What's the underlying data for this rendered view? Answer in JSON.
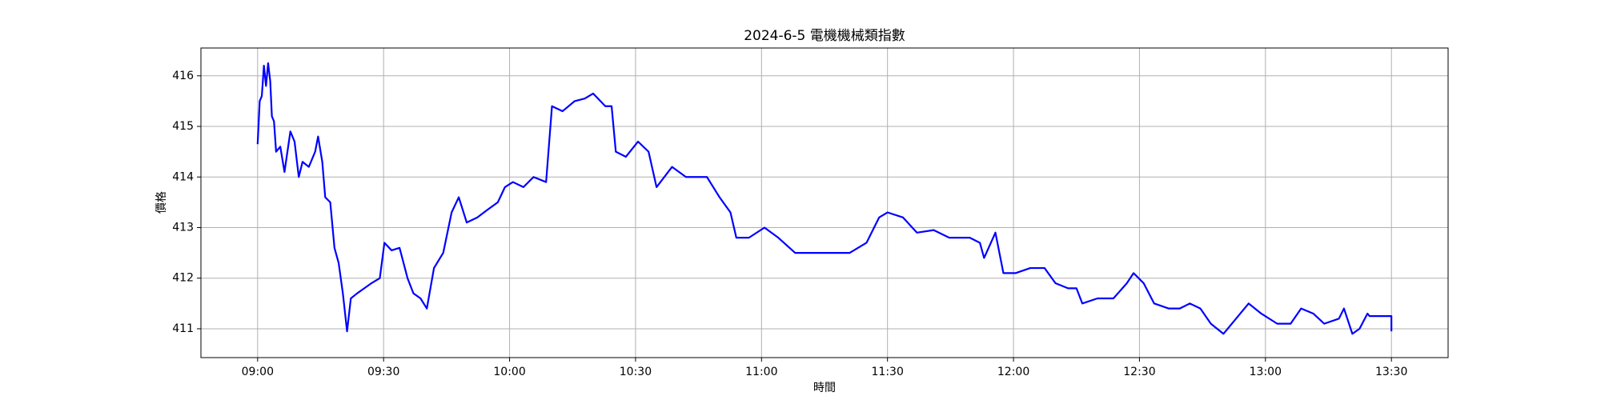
{
  "chart_data": {
    "type": "line",
    "title": "2024-6-5 電機機械類指數",
    "xlabel": "時間",
    "ylabel": "價格",
    "series": [
      {
        "color": "#0000ff",
        "x": [
          540,
          540.5,
          541,
          541.5,
          542,
          542.5,
          543,
          543.4,
          543.9,
          544.4,
          545.4,
          546.4,
          547.8,
          548.8,
          549.8,
          550.7,
          552.2,
          553.7,
          554.4,
          555.4,
          556.1,
          557.3,
          558.3,
          559.3,
          560.3,
          561.3,
          562.2,
          563.7,
          565.4,
          567.1,
          569.1,
          570.2,
          571.9,
          573.8,
          575.7,
          577.1,
          578.8,
          580.3,
          582,
          584.2,
          586.2,
          587.9,
          589.8,
          592.3,
          594.7,
          597.2,
          598.9,
          600.8,
          603.3,
          605.7,
          608.7,
          610.1,
          612.6,
          615.5,
          617.9,
          619.9,
          622.8,
          624.3,
          625.3,
          627.7,
          630.6,
          633.1,
          635,
          638.7,
          642,
          647,
          650,
          652.6,
          654,
          657,
          660.7,
          664,
          668,
          673,
          676.6,
          681,
          685,
          688,
          690,
          693.7,
          697,
          701,
          704.7,
          709.6,
          712,
          713,
          715.7,
          717.6,
          720.5,
          724,
          727.4,
          730,
          733,
          735,
          736.4,
          740,
          743.8,
          747,
          748.6,
          751,
          753.5,
          757,
          759.6,
          762,
          764.5,
          767,
          770,
          773,
          776,
          779,
          782.8,
          786,
          788.5,
          791.4,
          794,
          797.5,
          798.7,
          800.7,
          802.4,
          804.3,
          804.8,
          810,
          810
        ],
        "y": [
          414.65,
          415.5,
          415.6,
          416.2,
          415.8,
          416.25,
          415.9,
          415.2,
          415.1,
          414.5,
          414.6,
          414.1,
          414.9,
          414.7,
          414,
          414.3,
          414.2,
          414.5,
          414.8,
          414.3,
          413.6,
          413.5,
          412.6,
          412.3,
          411.7,
          410.95,
          411.6,
          411.7,
          411.8,
          411.9,
          412,
          412.7,
          412.55,
          412.6,
          412,
          411.7,
          411.6,
          411.4,
          412.2,
          412.5,
          413.3,
          413.6,
          413.1,
          413.2,
          413.35,
          413.5,
          413.8,
          413.9,
          413.8,
          414,
          413.9,
          415.4,
          415.3,
          415.5,
          415.55,
          415.65,
          415.4,
          415.4,
          414.5,
          414.4,
          414.7,
          414.5,
          413.8,
          414.2,
          414,
          414,
          413.6,
          413.3,
          412.8,
          412.8,
          413,
          412.8,
          412.5,
          412.5,
          412.5,
          412.5,
          412.7,
          413.2,
          413.3,
          413.2,
          412.9,
          412.95,
          412.8,
          412.8,
          412.7,
          412.4,
          412.9,
          412.1,
          412.1,
          412.2,
          412.2,
          411.9,
          411.8,
          411.8,
          411.5,
          411.6,
          411.6,
          411.9,
          412.1,
          411.9,
          411.5,
          411.4,
          411.4,
          411.5,
          411.4,
          411.1,
          410.9,
          411.2,
          411.5,
          411.3,
          411.1,
          411.1,
          411.4,
          411.3,
          411.1,
          411.2,
          411.4,
          410.9,
          411,
          411.3,
          411.25,
          411.25,
          410.95
        ]
      }
    ],
    "xlim": [
      526.5,
      823.5
    ],
    "xticks": [
      {
        "value": 540,
        "label": "09:00"
      },
      {
        "value": 570,
        "label": "09:30"
      },
      {
        "value": 600,
        "label": "10:00"
      },
      {
        "value": 630,
        "label": "10:30"
      },
      {
        "value": 660,
        "label": "11:00"
      },
      {
        "value": 690,
        "label": "11:30"
      },
      {
        "value": 720,
        "label": "12:00"
      },
      {
        "value": 750,
        "label": "12:30"
      },
      {
        "value": 780,
        "label": "13:00"
      },
      {
        "value": 810,
        "label": "13:30"
      }
    ],
    "ylim": [
      410.43,
      416.55
    ],
    "yticks": [
      411,
      412,
      413,
      414,
      415,
      416
    ],
    "grid": true
  }
}
